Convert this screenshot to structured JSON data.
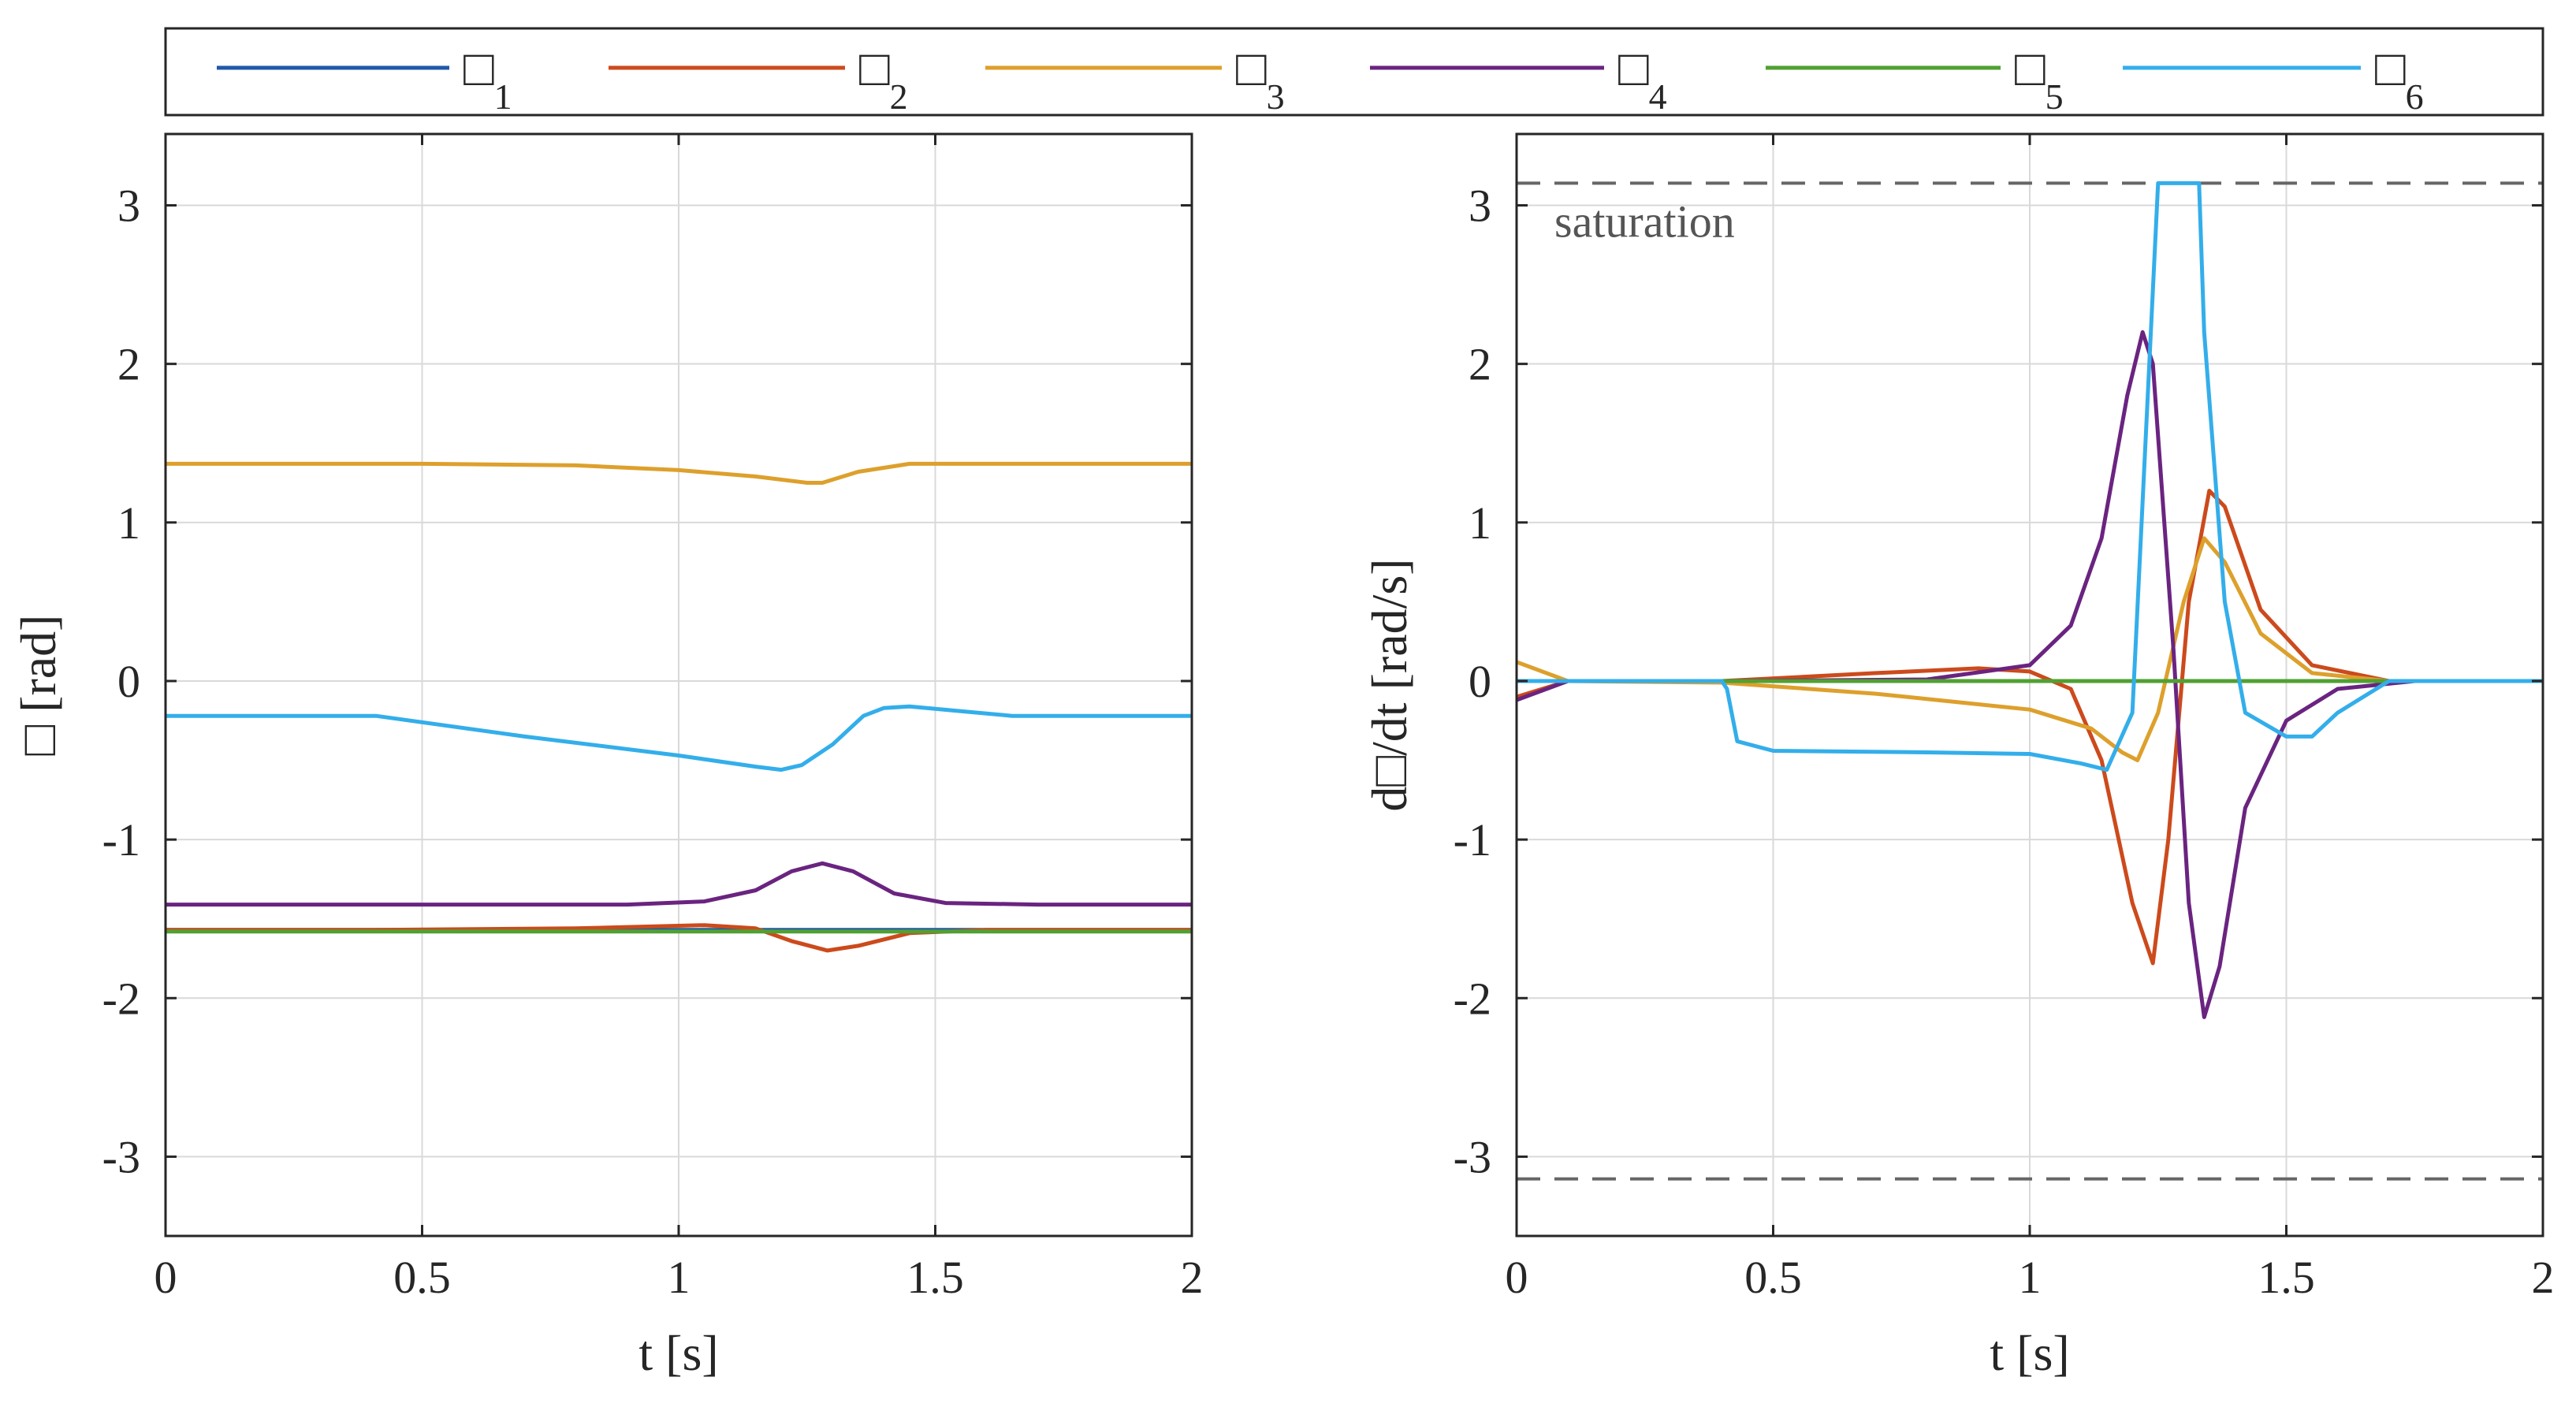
{
  "chart_data": [
    {
      "type": "line",
      "title": "",
      "xlabel": "t [s]",
      "ylabel": "□ [rad]",
      "xlim": [
        0,
        2
      ],
      "ylim": [
        -3.5,
        3.45
      ],
      "xticks": [
        0,
        0.5,
        1,
        1.5,
        2
      ],
      "xtick_labels": [
        "0",
        "0.5",
        "1",
        "1.5",
        "2"
      ],
      "yticks": [
        -3,
        -2,
        -1,
        0,
        1,
        2,
        3
      ],
      "ytick_labels": [
        "-3",
        "-2",
        "-1",
        "0",
        "1",
        "2",
        "3"
      ],
      "grid": true,
      "series": [
        {
          "name": "□_1",
          "x": [
            0,
            2
          ],
          "y": [
            -1.57,
            -1.57
          ]
        },
        {
          "name": "□_2",
          "x": [
            0,
            0.4,
            0.8,
            1.05,
            1.15,
            1.22,
            1.29,
            1.35,
            1.45,
            1.6,
            2
          ],
          "y": [
            -1.57,
            -1.57,
            -1.56,
            -1.54,
            -1.56,
            -1.64,
            -1.7,
            -1.67,
            -1.59,
            -1.57,
            -1.57
          ]
        },
        {
          "name": "□_3",
          "x": [
            0,
            0.5,
            0.8,
            1.0,
            1.15,
            1.25,
            1.28,
            1.35,
            1.45,
            1.6,
            2
          ],
          "y": [
            1.37,
            1.37,
            1.36,
            1.33,
            1.29,
            1.25,
            1.25,
            1.32,
            1.37,
            1.37,
            1.37
          ]
        },
        {
          "name": "□_4",
          "x": [
            0,
            0.5,
            0.9,
            1.05,
            1.15,
            1.22,
            1.28,
            1.34,
            1.42,
            1.52,
            1.7,
            2
          ],
          "y": [
            -1.41,
            -1.41,
            -1.41,
            -1.39,
            -1.32,
            -1.2,
            -1.15,
            -1.2,
            -1.34,
            -1.4,
            -1.41,
            -1.41
          ]
        },
        {
          "name": "□_5",
          "x": [
            0,
            2
          ],
          "y": [
            -1.58,
            -1.58
          ]
        },
        {
          "name": "□_6",
          "x": [
            0,
            0.41,
            0.7,
            1.0,
            1.15,
            1.2,
            1.24,
            1.3,
            1.36,
            1.4,
            1.45,
            1.55,
            1.65,
            2
          ],
          "y": [
            -0.22,
            -0.22,
            -0.35,
            -0.47,
            -0.54,
            -0.56,
            -0.53,
            -0.4,
            -0.22,
            -0.17,
            -0.16,
            -0.19,
            -0.22,
            -0.22
          ]
        }
      ]
    },
    {
      "type": "line",
      "title": "",
      "xlabel": "t [s]",
      "ylabel": "d□/dt [rad/s]",
      "xlim": [
        0,
        2
      ],
      "ylim": [
        -3.5,
        3.45
      ],
      "xticks": [
        0,
        0.5,
        1,
        1.5,
        2
      ],
      "xtick_labels": [
        "0",
        "0.5",
        "1",
        "1.5",
        "2"
      ],
      "yticks": [
        -3,
        -2,
        -1,
        0,
        1,
        2,
        3
      ],
      "ytick_labels": [
        "-3",
        "-2",
        "-1",
        "0",
        "1",
        "2",
        "3"
      ],
      "grid": true,
      "saturation": {
        "label": "saturation",
        "upper": 3.14,
        "lower": -3.14
      },
      "series": [
        {
          "name": "□_1",
          "x": [
            0,
            2
          ],
          "y": [
            0,
            0
          ]
        },
        {
          "name": "□_2",
          "x": [
            0,
            0.1,
            0.4,
            0.7,
            0.9,
            1.0,
            1.08,
            1.14,
            1.2,
            1.24,
            1.27,
            1.31,
            1.35,
            1.38,
            1.45,
            1.55,
            1.7,
            2
          ],
          "y": [
            -0.1,
            0,
            0,
            0.05,
            0.08,
            0.06,
            -0.05,
            -0.5,
            -1.4,
            -1.78,
            -1.0,
            0.5,
            1.2,
            1.1,
            0.45,
            0.1,
            0,
            0
          ]
        },
        {
          "name": "□_3",
          "x": [
            0,
            0.1,
            0.4,
            0.7,
            1.0,
            1.12,
            1.18,
            1.21,
            1.25,
            1.3,
            1.34,
            1.38,
            1.45,
            1.55,
            1.7,
            2
          ],
          "y": [
            0.12,
            0,
            -0.01,
            -0.08,
            -0.18,
            -0.3,
            -0.45,
            -0.5,
            -0.2,
            0.5,
            0.9,
            0.75,
            0.3,
            0.05,
            0,
            0
          ]
        },
        {
          "name": "□_4",
          "x": [
            0,
            0.1,
            0.4,
            0.8,
            1.0,
            1.08,
            1.14,
            1.19,
            1.22,
            1.24,
            1.28,
            1.31,
            1.34,
            1.37,
            1.42,
            1.5,
            1.6,
            1.75,
            2
          ],
          "y": [
            -0.12,
            0,
            0,
            0.01,
            0.1,
            0.35,
            0.9,
            1.8,
            2.2,
            2.0,
            0.2,
            -1.4,
            -2.12,
            -1.8,
            -0.8,
            -0.25,
            -0.05,
            0,
            0
          ]
        },
        {
          "name": "□_5",
          "x": [
            0,
            2
          ],
          "y": [
            0,
            0
          ]
        },
        {
          "name": "□_6",
          "x": [
            0,
            0.4,
            0.41,
            0.43,
            0.5,
            0.8,
            1.0,
            1.1,
            1.15,
            1.2,
            1.25,
            1.26,
            1.33,
            1.34,
            1.38,
            1.42,
            1.5,
            1.55,
            1.6,
            1.7,
            2
          ],
          "y": [
            0,
            0,
            -0.05,
            -0.38,
            -0.44,
            -0.45,
            -0.46,
            -0.52,
            -0.56,
            -0.2,
            3.14,
            3.14,
            3.14,
            2.2,
            0.5,
            -0.2,
            -0.35,
            -0.35,
            -0.2,
            0,
            0
          ]
        }
      ]
    }
  ],
  "legend": {
    "placement": "top",
    "entries": [
      {
        "symbol": "□",
        "sub": "1",
        "color": "#2058a8"
      },
      {
        "symbol": "□",
        "sub": "2",
        "color": "#cc4a1c"
      },
      {
        "symbol": "□",
        "sub": "3",
        "color": "#dda02c"
      },
      {
        "symbol": "□",
        "sub": "4",
        "color": "#6a2480"
      },
      {
        "symbol": "□",
        "sub": "5",
        "color": "#50a032"
      },
      {
        "symbol": "□",
        "sub": "6",
        "color": "#33aeea"
      }
    ]
  },
  "colors": {
    "axis": "#262626",
    "grid": "#d9d9d9",
    "saturation": "#666666"
  }
}
